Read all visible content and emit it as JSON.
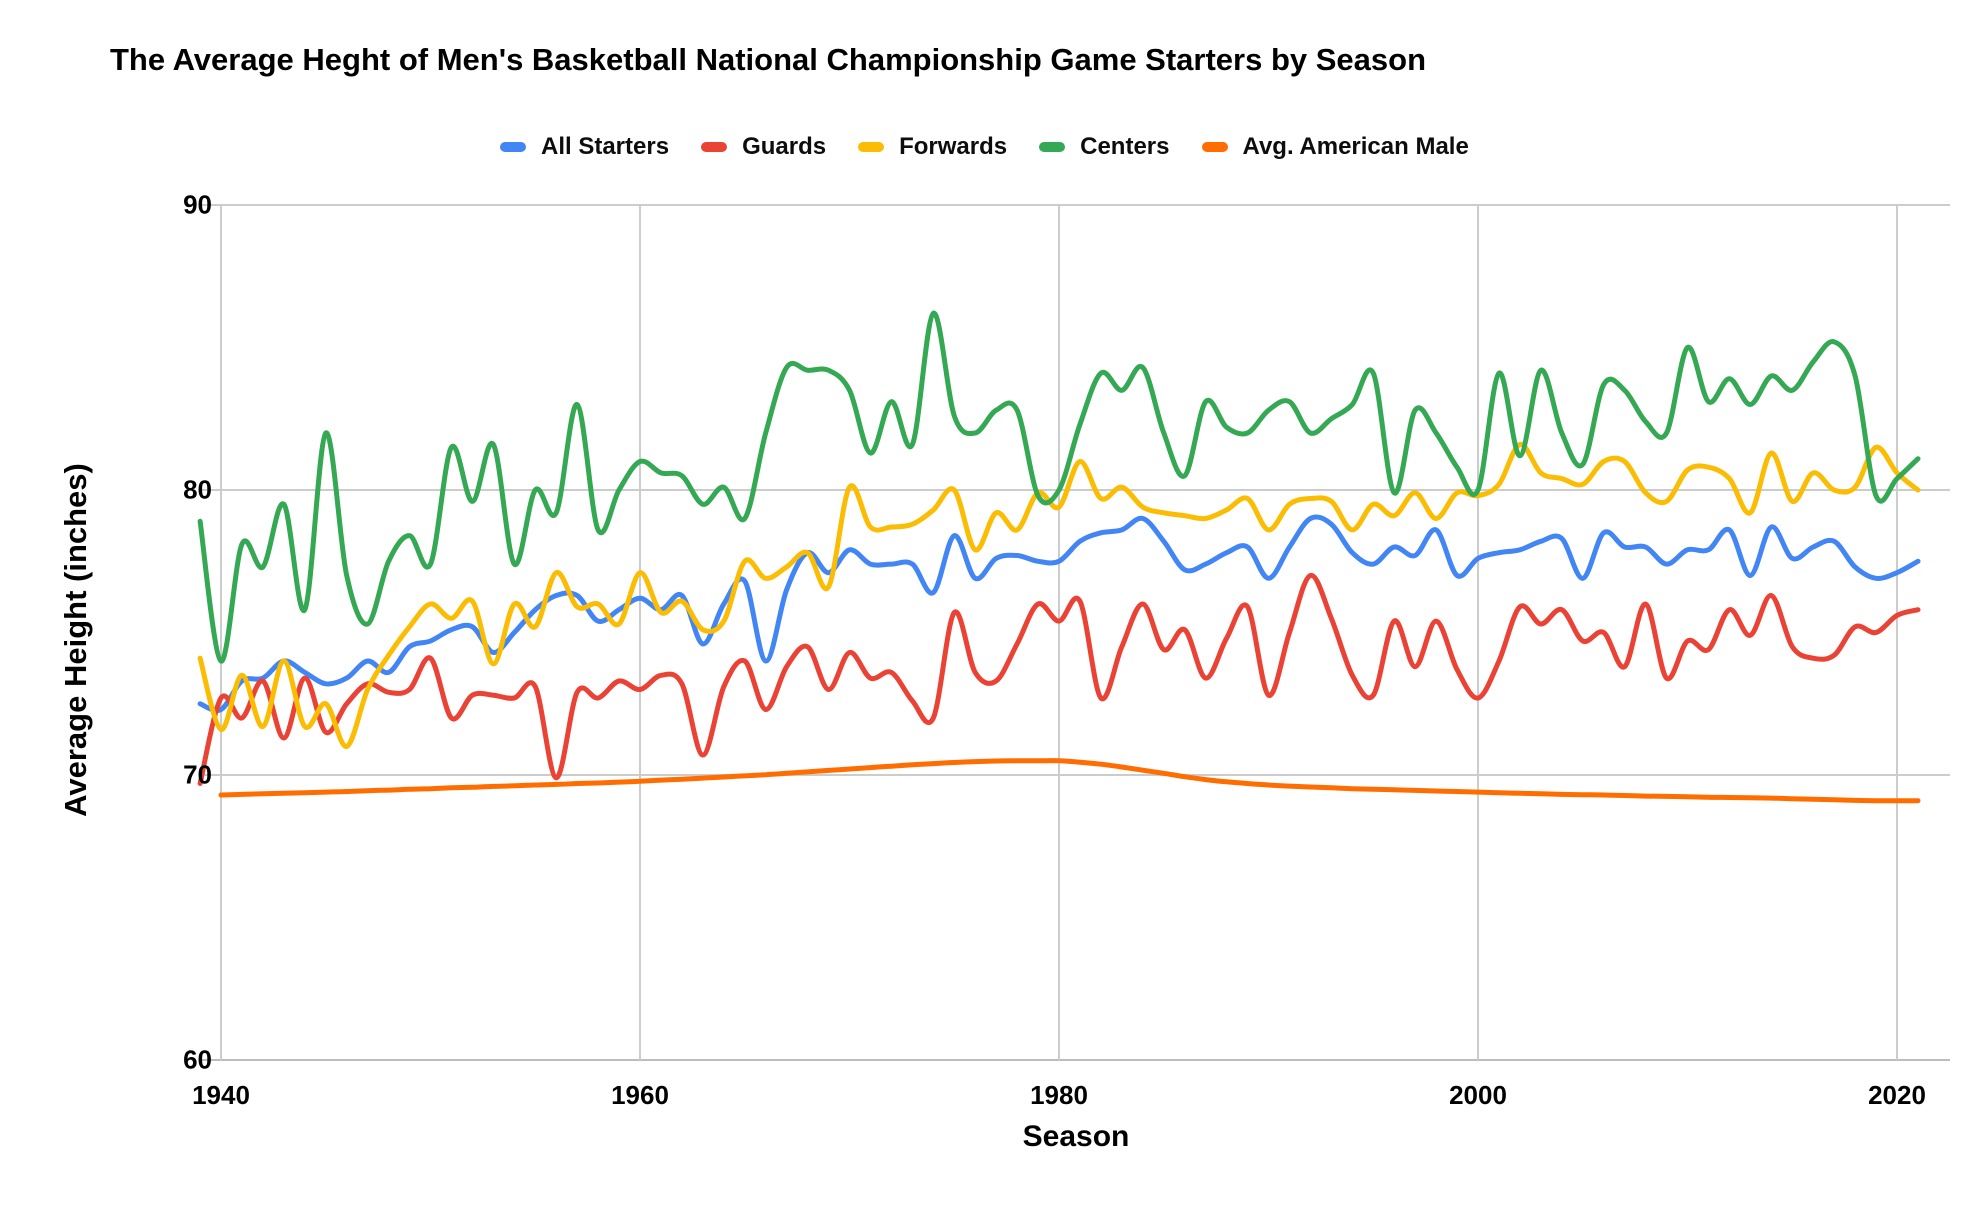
{
  "title": "The Average Heght of Men's Basketball National Championship Game Starters by Season",
  "legend": {
    "items": [
      {
        "label": "All Starters",
        "color": "#4285F4"
      },
      {
        "label": "Guards",
        "color": "#EA4335"
      },
      {
        "label": "Forwards",
        "color": "#FBBC04"
      },
      {
        "label": "Centers",
        "color": "#34A853"
      },
      {
        "label": "Avg. American Male",
        "color": "#FF6D01"
      }
    ]
  },
  "axes": {
    "x_title": "Season",
    "y_title": "Average Height (inches)"
  },
  "chart_data": {
    "type": "line",
    "title": "The Average Heght of Men's Basketball National Championship Game Starters by Season",
    "xlabel": "Season",
    "ylabel": "Average Height (inches)",
    "xlim": [
      1938.5,
      2022.5
    ],
    "ylim": [
      60,
      90
    ],
    "x_ticks": [
      1940,
      1960,
      1980,
      2000,
      2020
    ],
    "y_ticks": [
      90,
      80,
      70,
      60
    ],
    "grid": true,
    "gridline_color": "#cccccc",
    "legend_position": "top",
    "line_smoothing": true,
    "series": [
      {
        "name": "All Starters",
        "color": "#4285F4",
        "start_year": 1939,
        "values": [
          72.5,
          72.3,
          73.3,
          73.4,
          74.0,
          73.6,
          73.2,
          73.4,
          74.0,
          73.6,
          74.5,
          74.7,
          75.1,
          75.2,
          74.3,
          75.0,
          75.8,
          76.3,
          76.3,
          75.4,
          75.8,
          76.2,
          75.8,
          76.3,
          74.6,
          76.0,
          76.8,
          74.0,
          76.5,
          77.8,
          77.1,
          77.9,
          77.4,
          77.4,
          77.4,
          76.4,
          78.4,
          76.9,
          77.6,
          77.7,
          77.5,
          77.5,
          78.2,
          78.5,
          78.6,
          79.0,
          78.2,
          77.2,
          77.4,
          77.8,
          78.0,
          76.9,
          78.0,
          79.0,
          78.8,
          77.8,
          77.4,
          78.0,
          77.7,
          78.6,
          77.0,
          77.6,
          77.8,
          77.9,
          78.2,
          78.3,
          76.9,
          78.5,
          78.0,
          78.0,
          77.4,
          77.9,
          77.9,
          78.6,
          77.0,
          78.7,
          77.6,
          78.0,
          78.2,
          77.3,
          76.9,
          77.1,
          77.5
        ]
      },
      {
        "name": "Guards",
        "color": "#EA4335",
        "start_year": 1939,
        "values": [
          69.7,
          72.7,
          72.0,
          73.3,
          71.3,
          73.4,
          71.5,
          72.5,
          73.2,
          72.9,
          73.0,
          74.1,
          72.0,
          72.8,
          72.8,
          72.7,
          73.1,
          69.9,
          72.9,
          72.7,
          73.3,
          73.0,
          73.5,
          73.2,
          70.7,
          73.1,
          74.0,
          72.3,
          73.8,
          74.5,
          73.0,
          74.3,
          73.4,
          73.6,
          72.6,
          72.0,
          75.7,
          73.6,
          73.3,
          74.6,
          76.0,
          75.4,
          76.1,
          72.7,
          74.5,
          76.0,
          74.4,
          75.1,
          73.4,
          74.8,
          75.9,
          72.8,
          75.0,
          77.0,
          75.5,
          73.5,
          72.8,
          75.4,
          73.8,
          75.4,
          73.7,
          72.7,
          74.0,
          75.9,
          75.3,
          75.8,
          74.7,
          75.0,
          73.8,
          76.0,
          73.4,
          74.7,
          74.4,
          75.8,
          74.9,
          76.3,
          74.5,
          74.1,
          74.2,
          75.2,
          75.0,
          75.6,
          75.8
        ]
      },
      {
        "name": "Forwards",
        "color": "#FBBC04",
        "start_year": 1939,
        "values": [
          74.1,
          71.6,
          73.5,
          71.7,
          74.0,
          71.7,
          72.5,
          71.0,
          73.0,
          74.2,
          75.2,
          76.0,
          75.5,
          76.1,
          73.9,
          76.0,
          75.2,
          77.1,
          75.9,
          76.0,
          75.3,
          77.1,
          75.7,
          76.1,
          75.1,
          75.4,
          77.5,
          76.9,
          77.3,
          77.8,
          76.6,
          80.1,
          78.7,
          78.7,
          78.8,
          79.3,
          80.0,
          77.9,
          79.2,
          78.6,
          79.9,
          79.4,
          81.0,
          79.7,
          80.1,
          79.4,
          79.2,
          79.1,
          79.0,
          79.3,
          79.7,
          78.6,
          79.5,
          79.7,
          79.6,
          78.6,
          79.5,
          79.1,
          79.9,
          79.0,
          79.9,
          79.8,
          80.2,
          81.6,
          80.6,
          80.4,
          80.2,
          81.0,
          81.0,
          79.9,
          79.6,
          80.7,
          80.8,
          80.4,
          79.2,
          81.3,
          79.6,
          80.6,
          80.0,
          80.1,
          81.5,
          80.6,
          80.0
        ]
      },
      {
        "name": "Centers",
        "color": "#34A853",
        "start_year": 1939,
        "values": [
          78.9,
          74.0,
          78.1,
          77.3,
          79.5,
          75.8,
          82.0,
          77.0,
          75.3,
          77.5,
          78.4,
          77.4,
          81.5,
          79.6,
          81.6,
          77.4,
          80.0,
          79.2,
          83.0,
          78.6,
          80.0,
          81.0,
          80.6,
          80.5,
          79.5,
          80.1,
          79.0,
          82.0,
          84.3,
          84.2,
          84.2,
          83.5,
          81.3,
          83.1,
          81.6,
          86.2,
          82.6,
          82.0,
          82.8,
          82.8,
          79.8,
          80.0,
          82.3,
          84.1,
          83.5,
          84.3,
          82.0,
          80.5,
          83.1,
          82.2,
          82.0,
          82.8,
          83.1,
          82.0,
          82.5,
          83.0,
          84.1,
          79.9,
          82.8,
          82.0,
          80.8,
          80.0,
          84.1,
          81.2,
          84.2,
          82.0,
          80.9,
          83.7,
          83.5,
          82.4,
          82.0,
          85.0,
          83.1,
          83.9,
          83.0,
          84.0,
          83.5,
          84.5,
          85.2,
          84.0,
          79.8,
          80.4,
          81.1
        ]
      },
      {
        "name": "Avg. American Male",
        "color": "#FF6D01",
        "start_year": 1940,
        "values": [
          69.3,
          69.32,
          69.34,
          69.36,
          69.38,
          69.4,
          69.42,
          69.45,
          69.47,
          69.5,
          69.52,
          69.55,
          69.57,
          69.6,
          69.62,
          69.65,
          69.67,
          69.7,
          69.72,
          69.75,
          69.78,
          69.82,
          69.85,
          69.89,
          69.93,
          69.97,
          70.01,
          70.06,
          70.11,
          70.16,
          70.21,
          70.26,
          70.31,
          70.36,
          70.4,
          70.44,
          70.47,
          70.49,
          70.5,
          70.5,
          70.5,
          70.45,
          70.38,
          70.28,
          70.17,
          70.06,
          69.94,
          69.84,
          69.76,
          69.7,
          69.65,
          69.61,
          69.58,
          69.55,
          69.52,
          69.5,
          69.48,
          69.46,
          69.44,
          69.42,
          69.4,
          69.38,
          69.36,
          69.34,
          69.32,
          69.31,
          69.3,
          69.28,
          69.26,
          69.25,
          69.24,
          69.22,
          69.21,
          69.2,
          69.19,
          69.17,
          69.15,
          69.13,
          69.11,
          69.1,
          69.1,
          69.1
        ]
      }
    ]
  }
}
